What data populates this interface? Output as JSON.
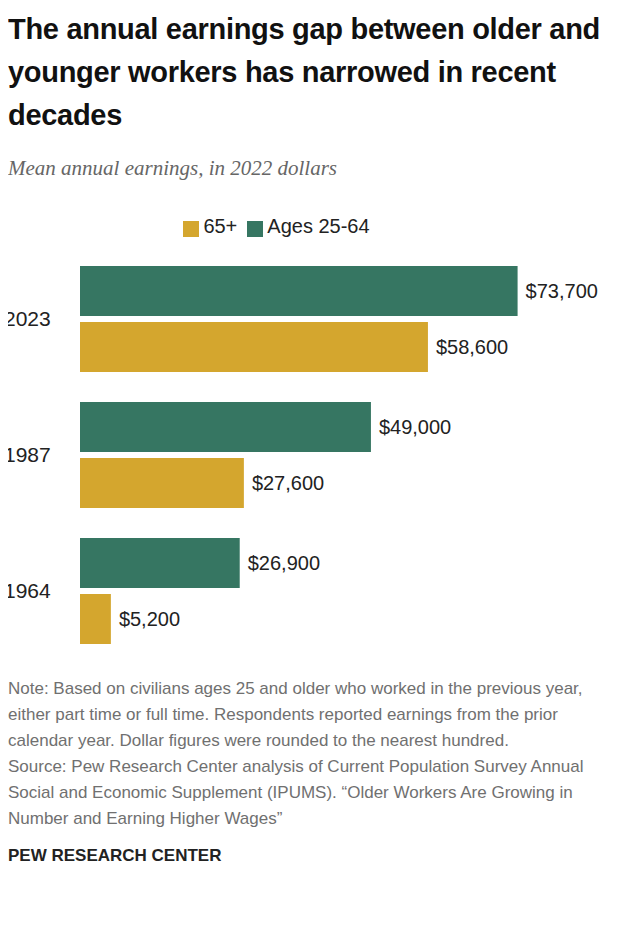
{
  "chart_data": {
    "type": "bar",
    "orientation": "horizontal",
    "title": "The annual earnings gap between older and younger workers has narrowed in recent decades",
    "subtitle": "Mean annual earnings, in 2022 dollars",
    "categories": [
      "2023",
      "1987",
      "1964"
    ],
    "series": [
      {
        "name": "Ages 25-64",
        "color": "#367662",
        "values": [
          73700,
          49000,
          26900
        ],
        "value_labels": [
          "$73,700",
          "$49,000",
          "$26,900"
        ]
      },
      {
        "name": "65+",
        "color": "#d4a62e",
        "values": [
          58600,
          27600,
          5200
        ],
        "value_labels": [
          "$58,600",
          "$27,600",
          "$5,200"
        ]
      }
    ],
    "xlim": [
      0,
      80000
    ],
    "tick_labels": "y",
    "data_labels": true,
    "grid": false,
    "legend": "top",
    "annotations": [
      "Note: Based on civilians ages 25 and older who worked in the previous year, either part time or full time. Respondents reported earnings from the prior calendar year. Dollar figures were rounded to the nearest hundred.",
      "Source: Pew Research Center analysis of Current Population Survey Annual Social and Economic Supplement (IPUMS). “Older Workers Are Growing in Number and Earning Higher Wages”",
      "PEW RESEARCH CENTER"
    ]
  }
}
